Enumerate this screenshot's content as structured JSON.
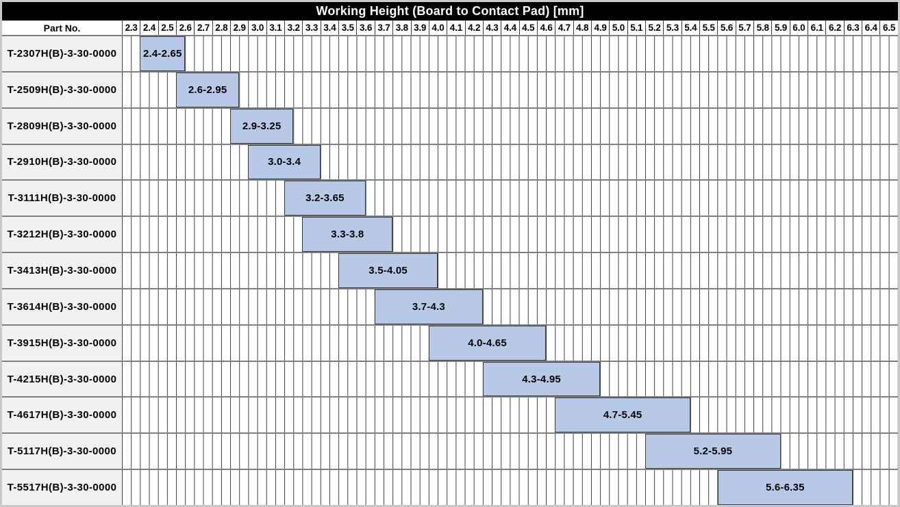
{
  "title": "Working Height (Board to Contact Pad) [mm]",
  "header": {
    "part_no_label": "Part No.",
    "tick_labels": [
      "2.3",
      "2.4",
      "2.5",
      "2.6",
      "2.7",
      "2.8",
      "2.9",
      "3.0",
      "3.1",
      "3.2",
      "3.3",
      "3.4",
      "3.5",
      "3.6",
      "3.7",
      "3.8",
      "3.9",
      "4.0",
      "4.1",
      "4.2",
      "4.3",
      "4.4",
      "4.5",
      "4.6",
      "4.7",
      "4.8",
      "4.9",
      "5.0",
      "5.1",
      "5.2",
      "5.3",
      "5.4",
      "5.5",
      "5.6",
      "5.7",
      "5.8",
      "5.9",
      "6.0",
      "6.1",
      "6.2",
      "6.3",
      "6.4",
      "6.5"
    ]
  },
  "axis": {
    "min": 2.3,
    "max": 6.6,
    "major_step": 0.1,
    "minor_step": 0.05
  },
  "rows": [
    {
      "part_no": "T-2307H(B)-3-30-0000",
      "start": 2.4,
      "end": 2.65,
      "label": "2.4-2.65"
    },
    {
      "part_no": "T-2509H(B)-3-30-0000",
      "start": 2.6,
      "end": 2.95,
      "label": "2.6-2.95"
    },
    {
      "part_no": "T-2809H(B)-3-30-0000",
      "start": 2.9,
      "end": 3.25,
      "label": "2.9-3.25"
    },
    {
      "part_no": "T-2910H(B)-3-30-0000",
      "start": 3.0,
      "end": 3.4,
      "label": "3.0-3.4"
    },
    {
      "part_no": "T-3111H(B)-3-30-0000",
      "start": 3.2,
      "end": 3.65,
      "label": "3.2-3.65"
    },
    {
      "part_no": "T-3212H(B)-3-30-0000",
      "start": 3.3,
      "end": 3.8,
      "label": "3.3-3.8"
    },
    {
      "part_no": "T-3413H(B)-3-30-0000",
      "start": 3.5,
      "end": 4.05,
      "label": "3.5-4.05"
    },
    {
      "part_no": "T-3614H(B)-3-30-0000",
      "start": 3.7,
      "end": 4.3,
      "label": "3.7-4.3"
    },
    {
      "part_no": "T-3915H(B)-3-30-0000",
      "start": 4.0,
      "end": 4.65,
      "label": "4.0-4.65"
    },
    {
      "part_no": "T-4215H(B)-3-30-0000",
      "start": 4.3,
      "end": 4.95,
      "label": "4.3-4.95"
    },
    {
      "part_no": "T-4617H(B)-3-30-0000",
      "start": 4.7,
      "end": 5.45,
      "label": "4.7-5.45"
    },
    {
      "part_no": "T-5117H(B)-3-30-0000",
      "start": 5.2,
      "end": 5.95,
      "label": "5.2-5.95"
    },
    {
      "part_no": "T-5517H(B)-3-30-0000",
      "start": 5.6,
      "end": 6.35,
      "label": "5.6-6.35"
    }
  ],
  "colors": {
    "title_bg": "#000000",
    "title_text": "#ffffff",
    "bar_fill": "#b7c9e7",
    "bar_border": "#3b3b3b",
    "grid_line": "#3b3b3b",
    "row_separator": "#7f7f7f",
    "part_column_bg": "#f1f1f1",
    "outer_frame": "#c9c9c9"
  },
  "chart_data": {
    "type": "bar",
    "subtype": "horizontal-range (gantt-style)",
    "title": "Working Height (Board to Contact Pad) [mm]",
    "categories": [
      "T-2307H(B)-3-30-0000",
      "T-2509H(B)-3-30-0000",
      "T-2809H(B)-3-30-0000",
      "T-2910H(B)-3-30-0000",
      "T-3111H(B)-3-30-0000",
      "T-3212H(B)-3-30-0000",
      "T-3413H(B)-3-30-0000",
      "T-3614H(B)-3-30-0000",
      "T-3915H(B)-3-30-0000",
      "T-4215H(B)-3-30-0000",
      "T-4617H(B)-3-30-0000",
      "T-5117H(B)-3-30-0000",
      "T-5517H(B)-3-30-0000"
    ],
    "series": [
      {
        "name": "Working Height (Board to Contact Pad) [mm]",
        "ranges": [
          [
            2.4,
            2.65
          ],
          [
            2.6,
            2.95
          ],
          [
            2.9,
            3.25
          ],
          [
            3.0,
            3.4
          ],
          [
            3.2,
            3.65
          ],
          [
            3.3,
            3.8
          ],
          [
            3.5,
            4.05
          ],
          [
            3.7,
            4.3
          ],
          [
            4.0,
            4.65
          ],
          [
            4.3,
            4.95
          ],
          [
            4.7,
            5.45
          ],
          [
            5.2,
            5.95
          ],
          [
            5.6,
            6.35
          ]
        ],
        "labels": [
          "2.4-2.65",
          "2.6-2.95",
          "2.9-3.25",
          "3.0-3.4",
          "3.2-3.65",
          "3.3-3.8",
          "3.5-4.05",
          "3.7-4.3",
          "4.0-4.65",
          "4.3-4.95",
          "4.7-5.45",
          "5.2-5.95",
          "5.6-6.35"
        ]
      }
    ],
    "xlim": [
      2.3,
      6.6
    ],
    "x_tick_labels": [
      "2.3",
      "2.4",
      "2.5",
      "2.6",
      "2.7",
      "2.8",
      "2.9",
      "3.0",
      "3.1",
      "3.2",
      "3.3",
      "3.4",
      "3.5",
      "3.6",
      "3.7",
      "3.8",
      "3.9",
      "4.0",
      "4.1",
      "4.2",
      "4.3",
      "4.4",
      "4.5",
      "4.6",
      "4.7",
      "4.8",
      "4.9",
      "5.0",
      "5.1",
      "5.2",
      "5.3",
      "5.4",
      "5.5",
      "5.6",
      "5.7",
      "5.8",
      "5.9",
      "6.0",
      "6.1",
      "6.2",
      "6.3",
      "6.4",
      "6.5"
    ],
    "grid": true,
    "minor_grid_step": 0.05,
    "legend": false,
    "ylabel": "Part No.",
    "xlabel": ""
  }
}
